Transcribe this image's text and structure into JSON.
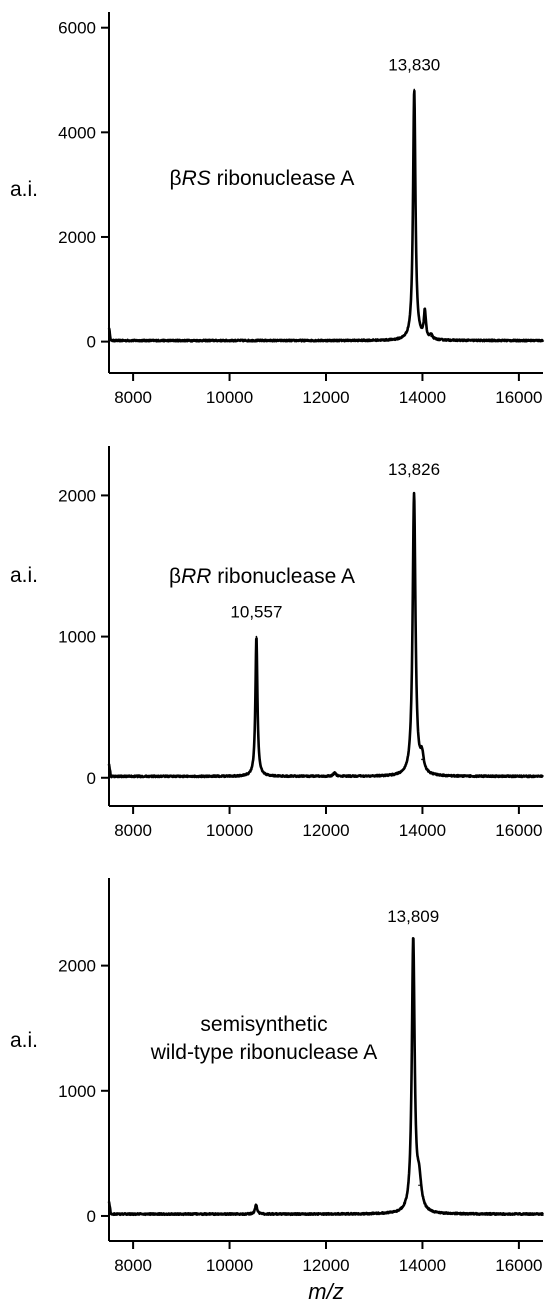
{
  "x_axis_label": "m/z",
  "chart_data": [
    {
      "type": "line",
      "title_parts": [
        {
          "text": "β",
          "style": "normal"
        },
        {
          "text": "RS",
          "style": "italic"
        },
        {
          "text": " ribonuclease A",
          "style": "normal"
        }
      ],
      "ylabel": "a.i.",
      "xlim": [
        7500,
        16500
      ],
      "ylim": [
        -600,
        6300
      ],
      "xticks": [
        8000,
        10000,
        12000,
        14000,
        16000
      ],
      "yticks": [
        0,
        2000,
        4000,
        6000
      ],
      "baseline": 20,
      "peaks": [
        {
          "x": 13830,
          "y": 4800,
          "width": 30,
          "label": "13,830"
        },
        {
          "x": 14050,
          "y": 520,
          "width": 25,
          "label": ""
        },
        {
          "x": 14180,
          "y": 80,
          "width": 30,
          "label": ""
        }
      ]
    },
    {
      "type": "line",
      "title_parts": [
        {
          "text": "β",
          "style": "normal"
        },
        {
          "text": "RR",
          "style": "italic"
        },
        {
          "text": " ribonuclease A",
          "style": "normal"
        }
      ],
      "ylabel": "a.i.",
      "xlim": [
        7500,
        16500
      ],
      "ylim": [
        -200,
        2350
      ],
      "xticks": [
        8000,
        10000,
        12000,
        14000,
        16000
      ],
      "yticks": [
        0,
        1000,
        2000
      ],
      "baseline": 10,
      "peaks": [
        {
          "x": 10557,
          "y": 990,
          "width": 25,
          "label": "10,557"
        },
        {
          "x": 13826,
          "y": 2000,
          "width": 35,
          "label": "13,826"
        },
        {
          "x": 13990,
          "y": 120,
          "width": 40,
          "label": ""
        },
        {
          "x": 12180,
          "y": 25,
          "width": 30,
          "label": ""
        }
      ]
    },
    {
      "type": "line",
      "title_parts": [
        {
          "text": "semisynthetic",
          "style": "normal",
          "line": 1
        },
        {
          "text": "wild-type ribonuclease A",
          "style": "normal",
          "line": 2
        }
      ],
      "ylabel": "a.i.",
      "xlim": [
        7500,
        16500
      ],
      "ylim": [
        -200,
        2700
      ],
      "xticks": [
        8000,
        10000,
        12000,
        14000,
        16000
      ],
      "yticks": [
        0,
        1000,
        2000
      ],
      "baseline": 15,
      "peaks": [
        {
          "x": 13809,
          "y": 2180,
          "width": 35,
          "label": "13,809"
        },
        {
          "x": 13930,
          "y": 230,
          "width": 55,
          "label": ""
        },
        {
          "x": 10550,
          "y": 75,
          "width": 25,
          "label": ""
        }
      ]
    }
  ]
}
